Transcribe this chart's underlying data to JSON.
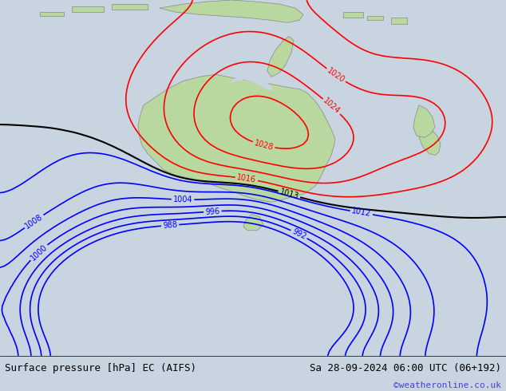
{
  "title_left": "Surface pressure [hPa] EC (AIFS)",
  "title_right": "Sa 28-09-2024 06:00 UTC (06+192)",
  "copyright": "©weatheronline.co.uk",
  "background_color": "#d0d8e8",
  "land_color": "#b8d8a0",
  "border_color": "#888888",
  "contour_levels_black": [
    1013
  ],
  "contour_levels_red": [
    1016,
    1020,
    1024,
    1028
  ],
  "contour_levels_blue": [
    988,
    992,
    996,
    1000,
    1004,
    1008,
    1012
  ],
  "title_fontsize": 9,
  "copyright_color": "#4444cc",
  "figsize": [
    6.34,
    4.9
  ],
  "dpi": 100
}
